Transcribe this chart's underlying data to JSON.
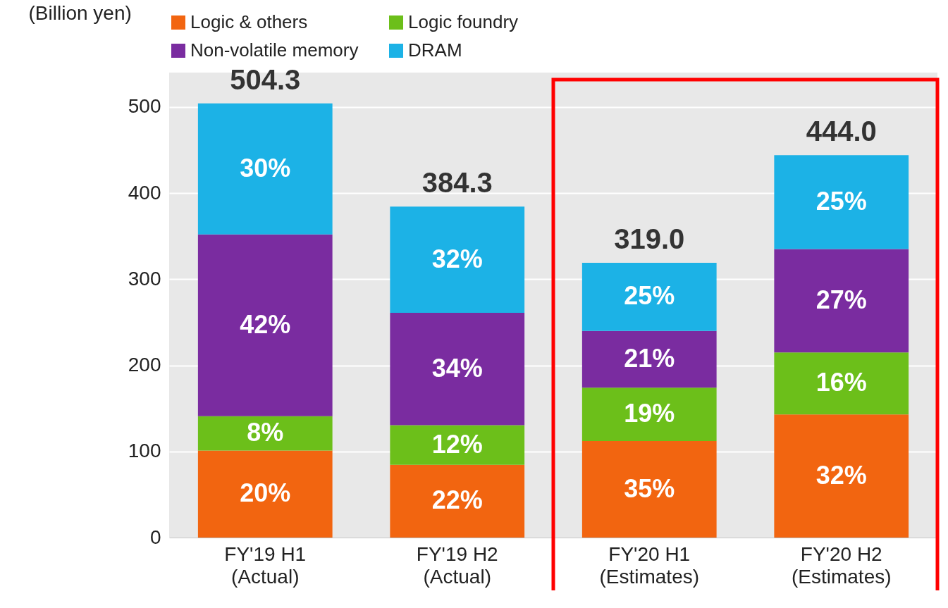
{
  "chart_data": {
    "type": "bar",
    "stacked": true,
    "ylabel": "(Billion yen)",
    "categories": [
      "FY'19 H1\n(Actual)",
      "FY'19 H2\n(Actual)",
      "FY'20 H1\n(Estimates)",
      "FY'20 H2\n(Estimates)"
    ],
    "series": [
      {
        "name": "Logic & others",
        "color": "#f26510",
        "values": [
          101,
          84.5,
          112,
          143
        ]
      },
      {
        "name": "Logic foundry",
        "color": "#6cbf1a",
        "values": [
          40,
          46,
          62,
          72
        ]
      },
      {
        "name": "Non-volatile memory",
        "color": "#7a2ca0",
        "values": [
          211,
          130.5,
          66,
          120
        ]
      },
      {
        "name": "DRAM",
        "color": "#1cb2e6",
        "values": [
          152.3,
          123.3,
          79,
          109
        ]
      }
    ],
    "totals": [
      "504.3",
      "384.3",
      "319.0",
      "444.0"
    ],
    "annotations": [
      "20%",
      "8%",
      "42%",
      "30%",
      "22%",
      "12%",
      "34%",
      "32%",
      "35%",
      "19%",
      "21%",
      "25%",
      "32%",
      "16%",
      "27%",
      "25%"
    ],
    "ylim": [
      0,
      540
    ],
    "yticks": [
      0,
      100,
      200,
      300,
      400,
      500
    ],
    "grid": "y",
    "legend": "top"
  }
}
